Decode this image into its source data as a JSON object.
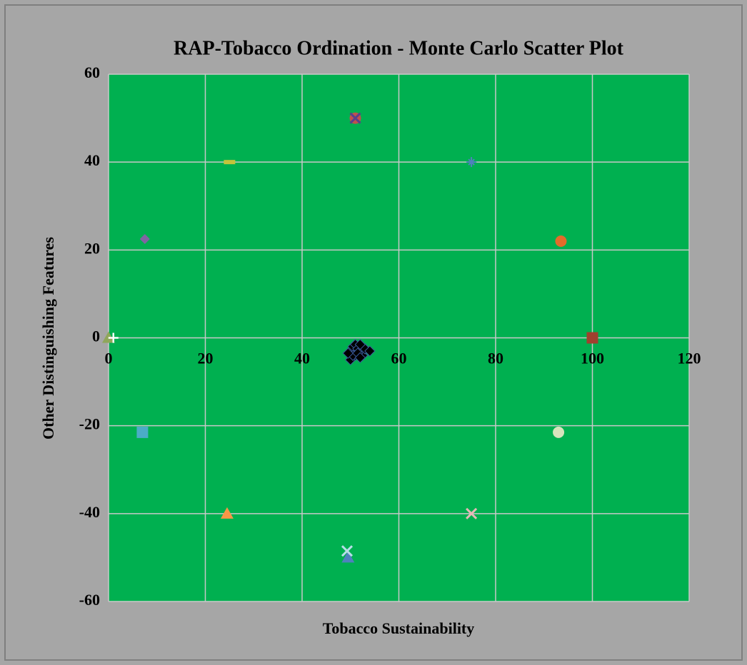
{
  "chart_data": {
    "type": "scatter",
    "title": "RAP-Tobacco Ordination - Monte Carlo Scatter Plot",
    "x_label": "Tobacco Sustainability",
    "y_label": "Other Distinguishing Features",
    "xlim": [
      0,
      120
    ],
    "ylim": [
      -60,
      60
    ],
    "xticks": [
      0,
      20,
      40,
      60,
      80,
      100,
      120
    ],
    "yticks": [
      -60,
      -40,
      -20,
      0,
      20,
      40,
      60
    ],
    "grid": true,
    "plot_color": "#00b050",
    "series": [
      {
        "color": "#a0402e",
        "marker": "square",
        "x": [
          100
        ],
        "values": [
          0
        ]
      },
      {
        "color": "#8fa65a",
        "marker": "triangle",
        "x": [
          0
        ],
        "values": [
          0
        ]
      },
      {
        "color": "#ffffff",
        "marker": "plus",
        "x": [
          1
        ],
        "values": [
          0
        ]
      },
      {
        "color": "#c0504d",
        "marker": "circle",
        "x": [
          51
        ],
        "values": [
          50
        ]
      },
      {
        "color": "#5a3e8c",
        "marker": "x",
        "x": [
          51
        ],
        "values": [
          50
        ]
      },
      {
        "color": "#c4c43a",
        "marker": "dash",
        "x": [
          25
        ],
        "values": [
          40
        ]
      },
      {
        "color": "#4f81bd",
        "marker": "star",
        "x": [
          75
        ],
        "values": [
          40
        ]
      },
      {
        "color": "#8064a2",
        "marker": "diamond",
        "x": [
          7.5
        ],
        "values": [
          22.5
        ]
      },
      {
        "color": "#e36c2a",
        "marker": "circle",
        "x": [
          93.5
        ],
        "values": [
          22
        ]
      },
      {
        "color": "#4bacc6",
        "marker": "square",
        "x": [
          7
        ],
        "values": [
          -21.5
        ]
      },
      {
        "color": "#d7e4bd",
        "marker": "circle",
        "x": [
          93
        ],
        "values": [
          -21.5
        ]
      },
      {
        "color": "#f79646",
        "marker": "triangle",
        "x": [
          24.5
        ],
        "values": [
          -40
        ]
      },
      {
        "color": "#e6b9b8",
        "marker": "x",
        "x": [
          75
        ],
        "values": [
          -40
        ]
      },
      {
        "color": "#4f81bd",
        "marker": "triangle",
        "x": [
          49.5
        ],
        "values": [
          -50
        ]
      },
      {
        "color": "#b7dee8",
        "marker": "x",
        "x": [
          49.3
        ],
        "values": [
          -48.5
        ]
      },
      {
        "color": "#000000",
        "marker": "diamond",
        "x": [
          50,
          50.5,
          51,
          51.5,
          52,
          52.5,
          53,
          54,
          50,
          51,
          52,
          50.5,
          49.5,
          51.5,
          52
        ],
        "values": [
          -3,
          -2,
          -1.5,
          -2.5,
          -3,
          -4,
          -2.5,
          -3,
          -5,
          -4,
          -1.5,
          -4,
          -3.5,
          -3.5,
          -4.5
        ]
      }
    ]
  }
}
